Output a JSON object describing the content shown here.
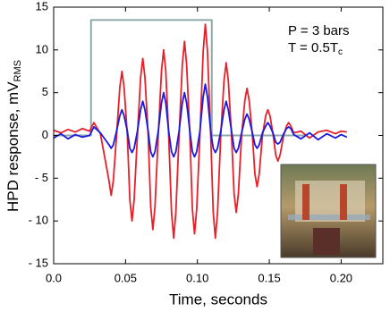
{
  "chart_data": {
    "type": "line",
    "xlabel": "Time, seconds",
    "ylabel": [
      "HPD response, mV",
      "RMS"
    ],
    "annotations": [
      [
        "P = 3 bars"
      ],
      [
        "T = 0.5T",
        "c"
      ]
    ],
    "xlim": [
      0,
      0.229
    ],
    "ylim": [
      -15,
      15
    ],
    "xticks": [
      {
        "value": 0,
        "label": "0.0"
      },
      0.05,
      {
        "value": 0.1,
        "label": "0.10"
      },
      0.15,
      {
        "value": 0.2,
        "label": "0.20"
      }
    ],
    "yticks": [
      {
        "value": -15,
        "label": "- 15"
      },
      {
        "value": -10,
        "label": "- 10"
      },
      {
        "value": -5,
        "label": "- 5"
      },
      0,
      5,
      10,
      15
    ],
    "x": [
      0,
      0.005,
      0.01,
      0.015,
      0.02,
      0.025,
      0.028,
      0.0325,
      0.0385,
      0.04,
      0.0415,
      0.04375,
      0.046,
      0.0475,
      0.049,
      0.05125,
      0.053,
      0.0545,
      0.056,
      0.05825,
      0.0605,
      0.062,
      0.0635,
      0.06575,
      0.0675,
      0.069,
      0.0705,
      0.07275,
      0.075,
      0.0765,
      0.078,
      0.08,
      0.082,
      0.0835,
      0.085,
      0.08725,
      0.0895,
      0.091,
      0.0925,
      0.09475,
      0.0965,
      0.098,
      0.0995,
      0.10175,
      0.104,
      0.1055,
      0.107,
      0.10925,
      0.111,
      0.1125,
      0.114,
      0.11625,
      0.1185,
      0.12,
      0.1215,
      0.12375,
      0.1255,
      0.127,
      0.1285,
      0.13075,
      0.133,
      0.1345,
      0.136,
      0.13825,
      0.14,
      0.1415,
      0.143,
      0.14525,
      0.1475,
      0.149,
      0.1505,
      0.15275,
      0.1545,
      0.156,
      0.1575,
      0.16,
      0.162,
      0.1635,
      0.165,
      0.167,
      0.172,
      0.178,
      0.184,
      0.19,
      0.196,
      0.2,
      0.204
    ],
    "series": [
      {
        "color": "#e8202a",
        "values": [
          0.6,
          0.3,
          0.7,
          0.4,
          0.8,
          0.5,
          1.5,
          0.2,
          -5.3,
          -7,
          -5.3,
          0,
          5.6,
          7.5,
          5.6,
          0,
          -7.5,
          -10,
          -7.5,
          0,
          6.8,
          9,
          6.8,
          0,
          -8.3,
          -11,
          -8.3,
          0,
          7.5,
          10,
          7.5,
          0,
          -9,
          -12,
          -9,
          0,
          8.3,
          11,
          8.3,
          0,
          -8.6,
          -11.5,
          -8.6,
          0,
          9.8,
          13,
          9.8,
          0,
          -9,
          -12,
          -9,
          0,
          6.4,
          8.5,
          6.4,
          0,
          -6.8,
          -9,
          -6.8,
          0,
          4.1,
          5.5,
          4.1,
          0,
          -4.5,
          -6,
          -4.5,
          0,
          2.3,
          3,
          2.3,
          0,
          -2.3,
          -3,
          -2.3,
          0,
          1.1,
          1.5,
          1.1,
          0.3,
          0.5,
          -0.3,
          0.4,
          0.6,
          0.2,
          0.5,
          0.4
        ]
      },
      {
        "color": "#1a1ae0",
        "values": [
          -0.3,
          0.2,
          -0.4,
          0.1,
          -0.2,
          0,
          1,
          0.3,
          -1.1,
          -1.5,
          -1.1,
          0.5,
          2.3,
          3,
          2.3,
          0.5,
          -1.5,
          -2,
          -1.5,
          0.5,
          3,
          4,
          3,
          0.5,
          -1.9,
          -2.5,
          -1.9,
          0.5,
          3.8,
          5,
          3.8,
          0.5,
          -1.9,
          -2.5,
          -1.9,
          0.5,
          3.8,
          5,
          3.8,
          0.5,
          -1.9,
          -2.5,
          -1.9,
          0.5,
          4.5,
          6,
          4.5,
          0.5,
          -1.5,
          -2,
          -1.5,
          0.5,
          3,
          4,
          3,
          0.5,
          -1.5,
          -2,
          -1.5,
          0.3,
          1.9,
          2.5,
          1.9,
          0.3,
          -1.1,
          -1.5,
          -1.1,
          0.3,
          1.1,
          1.5,
          1.1,
          0.2,
          -0.8,
          -1,
          -0.8,
          0.2,
          0.8,
          1,
          0.8,
          0.1,
          -0.4,
          0.3,
          -0.5,
          0.2,
          -0.3,
          0.1,
          -0.2
        ]
      },
      {
        "color": "#8fa8a8",
        "x": [
          0,
          0.026,
          0.026,
          0.11,
          0.11,
          0.175
        ],
        "values": [
          0,
          0,
          13.5,
          13.5,
          0,
          0
        ]
      }
    ]
  }
}
